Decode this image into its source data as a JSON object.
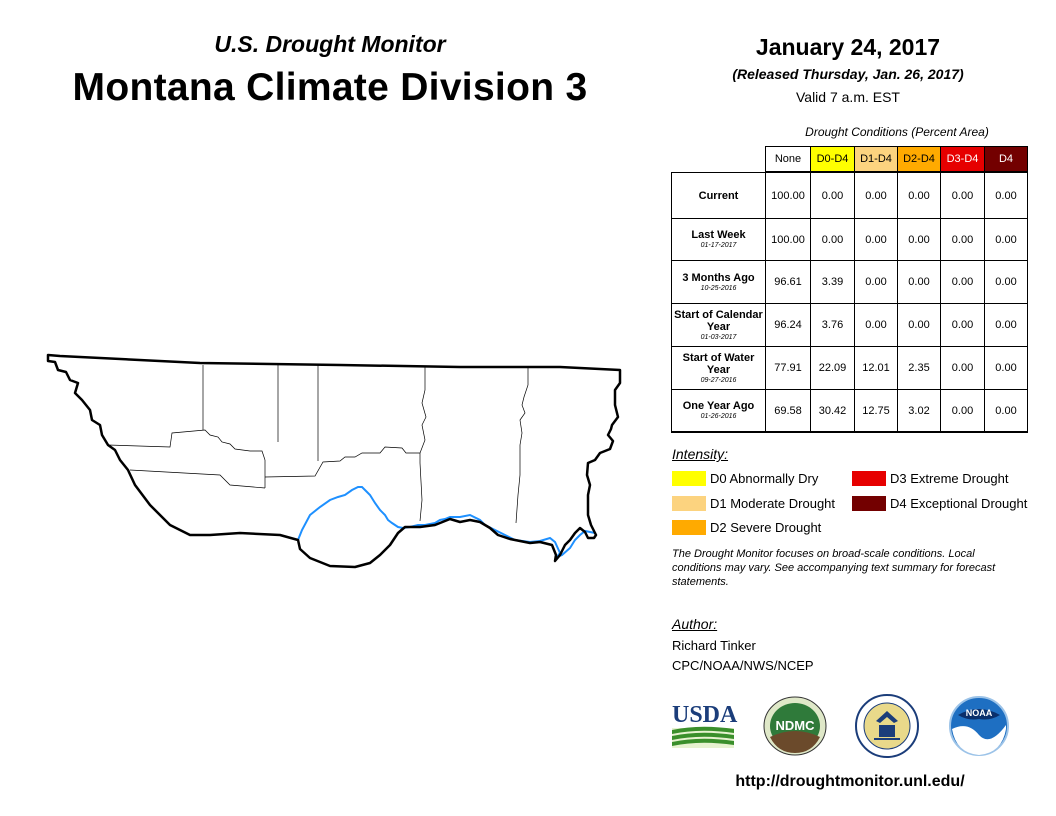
{
  "header": {
    "subtitle": "U.S. Drought Monitor",
    "title": "Montana Climate Division 3",
    "date": "January 24, 2017",
    "released": "(Released Thursday, Jan. 26, 2017)",
    "valid": "Valid 7 a.m. EST"
  },
  "table": {
    "caption": "Drought Conditions (Percent Area)",
    "columns": [
      {
        "label": "None",
        "color": "#ffffff",
        "text_color": "#000000"
      },
      {
        "label": "D0-D4",
        "color": "#ffff00",
        "text_color": "#000000"
      },
      {
        "label": "D1-D4",
        "color": "#fcd37f",
        "text_color": "#000000"
      },
      {
        "label": "D2-D4",
        "color": "#ffaa00",
        "text_color": "#000000"
      },
      {
        "label": "D3-D4",
        "color": "#e60000",
        "text_color": "#ffffff"
      },
      {
        "label": "D4",
        "color": "#730000",
        "text_color": "#ffffff"
      }
    ],
    "rows": [
      {
        "label": "Current",
        "date": "",
        "values": [
          "100.00",
          "0.00",
          "0.00",
          "0.00",
          "0.00",
          "0.00"
        ]
      },
      {
        "label": "Last Week",
        "date": "01-17-2017",
        "values": [
          "100.00",
          "0.00",
          "0.00",
          "0.00",
          "0.00",
          "0.00"
        ]
      },
      {
        "label": "3 Months Ago",
        "date": "10-25-2016",
        "values": [
          "96.61",
          "3.39",
          "0.00",
          "0.00",
          "0.00",
          "0.00"
        ]
      },
      {
        "label": "Start of Calendar Year",
        "date": "01-03-2017",
        "values": [
          "96.24",
          "3.76",
          "0.00",
          "0.00",
          "0.00",
          "0.00"
        ]
      },
      {
        "label": "Start of Water Year",
        "date": "09-27-2016",
        "values": [
          "77.91",
          "22.09",
          "12.01",
          "2.35",
          "0.00",
          "0.00"
        ]
      },
      {
        "label": "One Year Ago",
        "date": "01-26-2016",
        "values": [
          "69.58",
          "30.42",
          "12.75",
          "3.02",
          "0.00",
          "0.00"
        ]
      }
    ]
  },
  "legend": {
    "title": "Intensity:",
    "items": [
      {
        "label": "D0 Abnormally Dry",
        "color": "#ffff00"
      },
      {
        "label": "D1 Moderate Drought",
        "color": "#fcd37f"
      },
      {
        "label": "D2 Severe Drought",
        "color": "#ffaa00"
      },
      {
        "label": "D3 Extreme Drought",
        "color": "#e60000"
      },
      {
        "label": "D4 Exceptional Drought",
        "color": "#730000"
      }
    ]
  },
  "note": "The Drought Monitor focuses on broad-scale conditions. Local conditions may vary. See accompanying text summary for forecast statements.",
  "author": {
    "label": "Author:",
    "name": "Richard Tinker",
    "org": "CPC/NOAA/NWS/NCEP"
  },
  "logos": {
    "usda": "USDA",
    "ndmc": "NDMC",
    "noaa": "NOAA"
  },
  "url": "http://droughtmonitor.unl.edu/",
  "colors": {
    "river": "#1e90ff",
    "boundary": "#000000"
  }
}
